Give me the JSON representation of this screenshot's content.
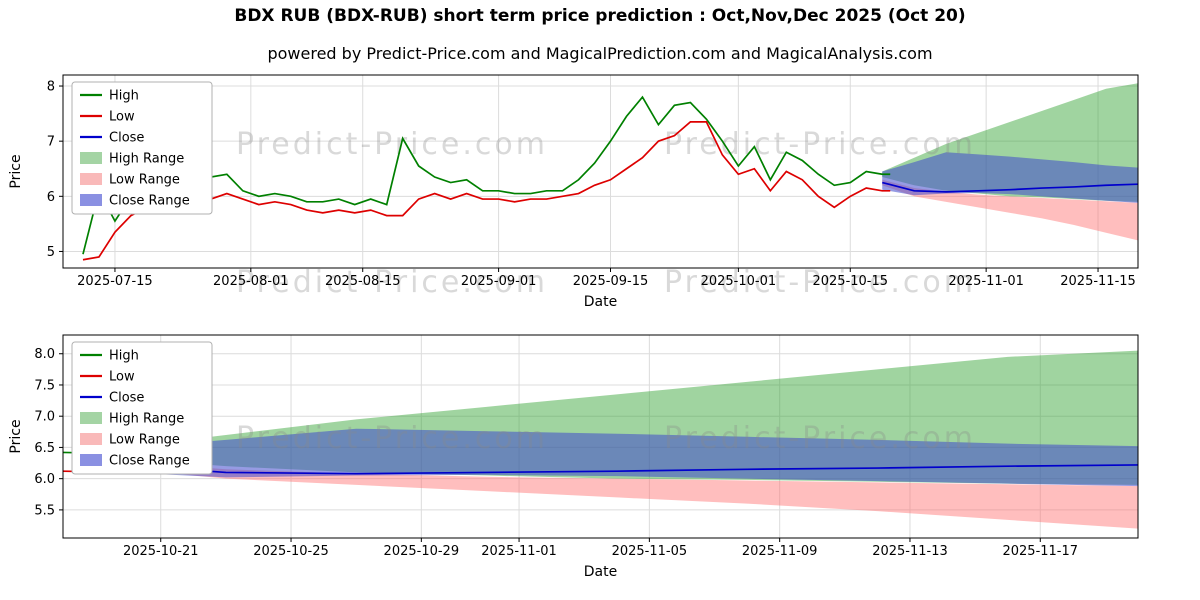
{
  "figure": {
    "title": "BDX RUB (BDX-RUB) short term price prediction : Oct,Nov,Dec 2025 (Oct 20)",
    "subtitle": "powered by Predict-Price.com and MagicalPrediction.com and MagicalAnalysis.com",
    "watermark": "Predict-Price.com"
  },
  "colors": {
    "high_line": "#008000",
    "low_line": "#dd0000",
    "close_line": "#0000cc",
    "high_band_fill": "rgba(44,160,44,0.45)",
    "low_band_fill": "rgba(255,99,99,0.42)",
    "close_band_fill": "rgba(63,72,204,0.55)",
    "grid": "#dcdcdc",
    "watermark_gray": "#8a8a8a"
  },
  "legend": [
    {
      "label": "High",
      "kind": "line",
      "color": "#008000"
    },
    {
      "label": "Low",
      "kind": "line",
      "color": "#dd0000"
    },
    {
      "label": "Close",
      "kind": "line",
      "color": "#0000cc"
    },
    {
      "label": "High Range",
      "kind": "band",
      "color": "#a4d4a4"
    },
    {
      "label": "Low Range",
      "kind": "band",
      "color": "#f9b9b9"
    },
    {
      "label": "Close Range",
      "kind": "band",
      "color": "#8a90e2"
    }
  ],
  "chart_data": [
    {
      "name": "price-history-and-forecast",
      "type": "line",
      "xlabel": "Date",
      "ylabel": "Price",
      "xlim": [
        -2.5,
        132
      ],
      "ylim": [
        4.7,
        8.2
      ],
      "x_unit": "days since 2025-07-11",
      "xticks": [
        {
          "v": 4,
          "label": "2025-07-15"
        },
        {
          "v": 21,
          "label": "2025-08-01"
        },
        {
          "v": 35,
          "label": "2025-08-15"
        },
        {
          "v": 52,
          "label": "2025-09-01"
        },
        {
          "v": 66,
          "label": "2025-09-15"
        },
        {
          "v": 82,
          "label": "2025-10-01"
        },
        {
          "v": 96,
          "label": "2025-10-15"
        },
        {
          "v": 113,
          "label": "2025-11-01"
        },
        {
          "v": 127,
          "label": "2025-11-15"
        }
      ],
      "yticks": [
        {
          "v": 5,
          "label": "5"
        },
        {
          "v": 6,
          "label": "6"
        },
        {
          "v": 7,
          "label": "7"
        },
        {
          "v": 8,
          "label": "8"
        }
      ],
      "series": [
        {
          "name": "High",
          "color": "#008000",
          "x": [
            0,
            2,
            4,
            6,
            8,
            10,
            12,
            14,
            16,
            18,
            20,
            22,
            24,
            26,
            28,
            30,
            32,
            34,
            36,
            38,
            40,
            42,
            44,
            46,
            48,
            50,
            52,
            54,
            56,
            58,
            60,
            62,
            64,
            66,
            68,
            70,
            72,
            74,
            76,
            78,
            80,
            82,
            84,
            86,
            88,
            90,
            92,
            94,
            96,
            98,
            100,
            101
          ],
          "y": [
            4.95,
            6.1,
            5.55,
            6.0,
            6.05,
            6.0,
            6.1,
            6.05,
            6.35,
            6.4,
            6.1,
            6.0,
            6.05,
            6.0,
            5.9,
            5.9,
            5.95,
            5.85,
            5.95,
            5.85,
            7.05,
            6.55,
            6.35,
            6.25,
            6.3,
            6.1,
            6.1,
            6.05,
            6.05,
            6.1,
            6.1,
            6.3,
            6.6,
            7.0,
            7.45,
            7.8,
            7.3,
            7.65,
            7.7,
            7.4,
            7.0,
            6.55,
            6.9,
            6.3,
            6.8,
            6.65,
            6.4,
            6.2,
            6.25,
            6.45,
            6.4,
            6.4
          ]
        },
        {
          "name": "Low",
          "color": "#dd0000",
          "x": [
            0,
            2,
            4,
            6,
            8,
            10,
            12,
            14,
            16,
            18,
            20,
            22,
            24,
            26,
            28,
            30,
            32,
            34,
            36,
            38,
            40,
            42,
            44,
            46,
            48,
            50,
            52,
            54,
            56,
            58,
            60,
            62,
            64,
            66,
            68,
            70,
            72,
            74,
            76,
            78,
            80,
            82,
            84,
            86,
            88,
            90,
            92,
            94,
            96,
            98,
            100,
            101
          ],
          "y": [
            4.85,
            4.9,
            5.35,
            5.65,
            5.8,
            5.75,
            5.85,
            5.8,
            5.95,
            6.05,
            5.95,
            5.85,
            5.9,
            5.85,
            5.75,
            5.7,
            5.75,
            5.7,
            5.75,
            5.65,
            5.65,
            5.95,
            6.05,
            5.95,
            6.05,
            5.95,
            5.95,
            5.9,
            5.95,
            5.95,
            6.0,
            6.05,
            6.2,
            6.3,
            6.5,
            6.7,
            7.0,
            7.1,
            7.35,
            7.35,
            6.75,
            6.4,
            6.5,
            6.1,
            6.45,
            6.3,
            6.0,
            5.8,
            6.0,
            6.15,
            6.1,
            6.1
          ]
        },
        {
          "name": "Close",
          "color": "#0000cc",
          "x": [
            100,
            104,
            108,
            112,
            116,
            120,
            124,
            128,
            132
          ],
          "y": [
            6.25,
            6.1,
            6.08,
            6.1,
            6.12,
            6.15,
            6.17,
            6.2,
            6.22
          ]
        }
      ],
      "bands": [
        {
          "name": "High Range",
          "fill": "rgba(44,160,44,0.45)",
          "x": [
            100,
            104,
            108,
            112,
            116,
            120,
            124,
            128,
            132
          ],
          "upper": [
            6.45,
            6.7,
            6.95,
            7.15,
            7.35,
            7.55,
            7.75,
            7.95,
            8.05
          ],
          "lower": [
            6.35,
            6.2,
            6.1,
            6.05,
            6.0,
            5.98,
            5.95,
            5.92,
            5.9
          ]
        },
        {
          "name": "Low Range",
          "fill": "rgba(255,99,99,0.42)",
          "x": [
            100,
            104,
            108,
            112,
            116,
            120,
            124,
            128,
            132
          ],
          "upper": [
            6.3,
            6.15,
            6.08,
            6.03,
            6.0,
            5.97,
            5.94,
            5.91,
            5.88
          ],
          "lower": [
            6.2,
            6.0,
            5.9,
            5.8,
            5.7,
            5.6,
            5.48,
            5.34,
            5.2
          ]
        },
        {
          "name": "Close Range",
          "fill": "rgba(63,72,204,0.55)",
          "x": [
            100,
            104,
            108,
            112,
            116,
            120,
            124,
            128,
            132
          ],
          "upper": [
            6.45,
            6.62,
            6.8,
            6.76,
            6.72,
            6.67,
            6.62,
            6.56,
            6.52
          ],
          "lower": [
            6.12,
            6.02,
            6.05,
            6.06,
            6.04,
            6.0,
            5.96,
            5.92,
            5.88
          ]
        }
      ]
    },
    {
      "name": "forecast-zoom",
      "type": "line",
      "xlabel": "Date",
      "ylabel": "Price",
      "xlim": [
        99,
        132
      ],
      "ylim": [
        5.05,
        8.3
      ],
      "x_unit": "days since 2025-07-11",
      "xticks": [
        {
          "v": 102,
          "label": "2025-10-21"
        },
        {
          "v": 106,
          "label": "2025-10-25"
        },
        {
          "v": 110,
          "label": "2025-10-29"
        },
        {
          "v": 113,
          "label": "2025-11-01"
        },
        {
          "v": 117,
          "label": "2025-11-05"
        },
        {
          "v": 121,
          "label": "2025-11-09"
        },
        {
          "v": 125,
          "label": "2025-11-13"
        },
        {
          "v": 129,
          "label": "2025-11-17"
        }
      ],
      "yticks": [
        {
          "v": 5.5,
          "label": "5.5"
        },
        {
          "v": 6.0,
          "label": "6.0"
        },
        {
          "v": 6.5,
          "label": "6.5"
        },
        {
          "v": 7.0,
          "label": "7.0"
        },
        {
          "v": 7.5,
          "label": "7.5"
        },
        {
          "v": 8.0,
          "label": "8.0"
        }
      ],
      "series": [
        {
          "name": "High",
          "color": "#008000",
          "x": [
            99,
            101
          ],
          "y": [
            6.42,
            6.4
          ]
        },
        {
          "name": "Low",
          "color": "#dd0000",
          "x": [
            99,
            101
          ],
          "y": [
            6.12,
            6.1
          ]
        },
        {
          "name": "Close",
          "color": "#0000cc",
          "x": [
            100,
            104,
            108,
            112,
            116,
            120,
            124,
            128,
            132
          ],
          "y": [
            6.25,
            6.1,
            6.08,
            6.1,
            6.12,
            6.15,
            6.17,
            6.2,
            6.22
          ]
        }
      ],
      "bands": [
        {
          "name": "High Range",
          "fill": "rgba(44,160,44,0.45)",
          "x": [
            100,
            104,
            108,
            112,
            116,
            120,
            124,
            128,
            132
          ],
          "upper": [
            6.45,
            6.7,
            6.95,
            7.15,
            7.35,
            7.55,
            7.75,
            7.95,
            8.05
          ],
          "lower": [
            6.35,
            6.2,
            6.1,
            6.05,
            6.0,
            5.98,
            5.95,
            5.92,
            5.9
          ]
        },
        {
          "name": "Low Range",
          "fill": "rgba(255,99,99,0.42)",
          "x": [
            100,
            104,
            108,
            112,
            116,
            120,
            124,
            128,
            132
          ],
          "upper": [
            6.3,
            6.15,
            6.08,
            6.03,
            6.0,
            5.97,
            5.94,
            5.91,
            5.88
          ],
          "lower": [
            6.2,
            6.0,
            5.9,
            5.8,
            5.7,
            5.6,
            5.48,
            5.34,
            5.2
          ]
        },
        {
          "name": "Close Range",
          "fill": "rgba(63,72,204,0.55)",
          "x": [
            100,
            104,
            108,
            112,
            116,
            120,
            124,
            128,
            132
          ],
          "upper": [
            6.45,
            6.62,
            6.8,
            6.76,
            6.72,
            6.67,
            6.62,
            6.56,
            6.52
          ],
          "lower": [
            6.12,
            6.02,
            6.05,
            6.06,
            6.04,
            6.0,
            5.96,
            5.92,
            5.88
          ]
        }
      ]
    }
  ]
}
